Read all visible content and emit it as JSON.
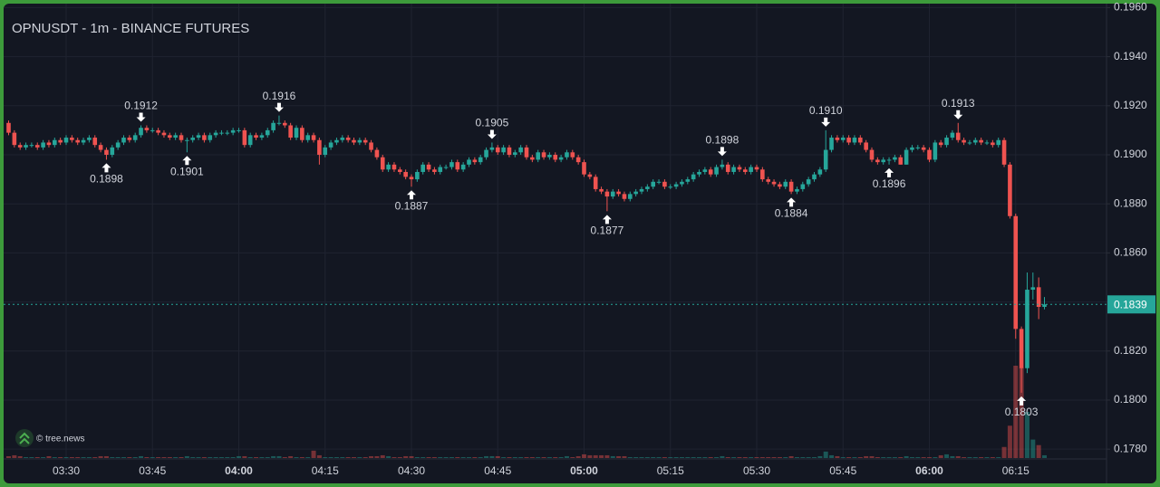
{
  "chart_data": {
    "type": "candlestick",
    "title": "OPNUSDT - 1m - BINANCE FUTURES",
    "watermark": "© tree.news",
    "up_color": "#26a69a",
    "down_color": "#ef5350",
    "grid": true,
    "ylim": [
      0.1776,
      0.1962
    ],
    "yticks": [
      {
        "value": 0.178,
        "label": "0.1780"
      },
      {
        "value": 0.18,
        "label": "0.1800"
      },
      {
        "value": 0.182,
        "label": "0.1820"
      },
      {
        "value": 0.184,
        "label": "0.1840"
      },
      {
        "value": 0.186,
        "label": "0.1860"
      },
      {
        "value": 0.188,
        "label": "0.1880"
      },
      {
        "value": 0.19,
        "label": "0.1900"
      },
      {
        "value": 0.192,
        "label": "0.1920"
      },
      {
        "value": 0.194,
        "label": "0.1940"
      },
      {
        "value": 0.196,
        "label": "0.1960"
      }
    ],
    "last_price": 0.1839,
    "x": [
      null,
      null,
      null,
      null,
      null,
      null,
      null,
      null,
      null,
      null,
      "03:30",
      null,
      null,
      null,
      null,
      null,
      null,
      null,
      null,
      null,
      null,
      null,
      null,
      null,
      null,
      "03:45",
      null,
      null,
      null,
      null,
      null,
      null,
      null,
      null,
      null,
      null,
      null,
      null,
      null,
      null,
      "04:00",
      null,
      null,
      null,
      null,
      null,
      null,
      null,
      null,
      null,
      null,
      null,
      null,
      null,
      null,
      "04:15",
      null,
      null,
      null,
      null,
      null,
      null,
      null,
      null,
      null,
      null,
      null,
      null,
      null,
      null,
      "04:30",
      null,
      null,
      null,
      null,
      null,
      null,
      null,
      null,
      null,
      null,
      null,
      null,
      null,
      null,
      "04:45",
      null,
      null,
      null,
      null,
      null,
      null,
      null,
      null,
      null,
      null,
      null,
      null,
      null,
      null,
      "05:00",
      null,
      null,
      null,
      null,
      null,
      null,
      null,
      null,
      null,
      null,
      null,
      null,
      null,
      null,
      "05:15",
      null,
      null,
      null,
      null,
      null,
      null,
      null,
      null,
      null,
      null,
      null,
      null,
      null,
      null,
      "05:30",
      null,
      null,
      null,
      null,
      null,
      null,
      null,
      null,
      null,
      null,
      null,
      null,
      null,
      null,
      "05:45",
      null,
      null,
      null,
      null,
      null,
      null,
      null,
      null,
      null,
      null,
      null,
      null,
      null,
      null,
      "06:00",
      null,
      null,
      null,
      null,
      null,
      null,
      null,
      null,
      null,
      null,
      null,
      null,
      null,
      null,
      "06:15",
      null,
      null,
      null,
      null,
      null
    ],
    "open": [
      0.1913,
      0.1909,
      0.1904,
      0.1903,
      0.1904,
      0.1904,
      0.1903,
      0.1905,
      0.1904,
      0.1906,
      0.1905,
      0.1907,
      0.1906,
      0.1905,
      0.1906,
      0.1907,
      0.1904,
      0.1902,
      0.19,
      0.1903,
      0.1905,
      0.1907,
      0.1906,
      0.1908,
      0.1911,
      0.191,
      0.191,
      0.1909,
      0.1908,
      0.1907,
      0.1908,
      0.1906,
      0.1906,
      0.1907,
      0.1908,
      0.1906,
      0.1908,
      0.1909,
      0.1909,
      0.1909,
      0.191,
      0.191,
      0.1904,
      0.1908,
      0.1907,
      0.1908,
      0.191,
      0.1913,
      0.1913,
      0.1912,
      0.1907,
      0.1911,
      0.1906,
      0.1908,
      0.1906,
      0.19,
      0.1903,
      0.1905,
      0.1906,
      0.1907,
      0.1906,
      0.1905,
      0.1906,
      0.1905,
      0.1902,
      0.1899,
      0.1894,
      0.1896,
      0.1894,
      0.1893,
      0.1891,
      0.189,
      0.1893,
      0.1896,
      0.1894,
      0.1893,
      0.1895,
      0.1895,
      0.1897,
      0.1894,
      0.1896,
      0.1898,
      0.1897,
      0.1899,
      0.1902,
      0.1903,
      0.1901,
      0.1903,
      0.19,
      0.1901,
      0.1903,
      0.1899,
      0.1898,
      0.1901,
      0.1899,
      0.19,
      0.1898,
      0.1899,
      0.1901,
      0.1899,
      0.1897,
      0.1892,
      0.1891,
      0.1886,
      0.1885,
      0.1883,
      0.1885,
      0.1884,
      0.1882,
      0.1884,
      0.1885,
      0.1886,
      0.1887,
      0.1889,
      0.1889,
      0.1887,
      0.1887,
      0.1888,
      0.1889,
      0.189,
      0.1892,
      0.1893,
      0.1894,
      0.1892,
      0.1895,
      0.1896,
      0.1893,
      0.1895,
      0.1894,
      0.1893,
      0.1895,
      0.1894,
      0.189,
      0.1889,
      0.1888,
      0.1887,
      0.1889,
      0.1885,
      0.1886,
      0.1888,
      0.189,
      0.1892,
      0.1894,
      0.1902,
      0.1907,
      0.1906,
      0.1907,
      0.1905,
      0.1907,
      0.1905,
      0.1902,
      0.1898,
      0.1897,
      0.1898,
      0.1898,
      0.1899,
      0.1896,
      0.1902,
      0.1903,
      0.1903,
      0.1902,
      0.1898,
      0.1905,
      0.1904,
      0.1907,
      0.1909,
      0.1906,
      0.1905,
      0.1905,
      0.1906,
      0.1905,
      0.1905,
      0.1904,
      0.1906,
      0.1896,
      0.1875,
      0.1829,
      0.1813,
      0.1845,
      0.1846,
      0.1838
    ],
    "high": [
      0.1914,
      0.191,
      0.1905,
      0.1905,
      0.1905,
      0.1905,
      0.1906,
      0.1906,
      0.1907,
      0.1907,
      0.1908,
      0.1908,
      0.1907,
      0.1907,
      0.1908,
      0.1908,
      0.1905,
      0.1903,
      0.1904,
      0.1906,
      0.1908,
      0.1908,
      0.1909,
      0.1912,
      0.1912,
      0.1911,
      0.1911,
      0.191,
      0.1909,
      0.1909,
      0.1909,
      0.1907,
      0.1908,
      0.1909,
      0.1909,
      0.1909,
      0.191,
      0.191,
      0.191,
      0.1911,
      0.1911,
      0.1911,
      0.1909,
      0.1909,
      0.1909,
      0.1911,
      0.1914,
      0.1916,
      0.1914,
      0.1913,
      0.1912,
      0.1912,
      0.1909,
      0.1909,
      0.1907,
      0.1904,
      0.1906,
      0.1907,
      0.1908,
      0.1908,
      0.1907,
      0.1907,
      0.1907,
      0.1906,
      0.1903,
      0.19,
      0.1897,
      0.1897,
      0.1895,
      0.1894,
      0.1892,
      0.1894,
      0.1897,
      0.1897,
      0.1895,
      0.1896,
      0.1896,
      0.1898,
      0.1898,
      0.1897,
      0.1899,
      0.1899,
      0.19,
      0.1903,
      0.1905,
      0.1904,
      0.1904,
      0.1904,
      0.1902,
      0.1904,
      0.1904,
      0.19,
      0.1902,
      0.1902,
      0.1901,
      0.1901,
      0.19,
      0.1902,
      0.1902,
      0.19,
      0.1898,
      0.1893,
      0.1892,
      0.1887,
      0.1886,
      0.1886,
      0.1886,
      0.1885,
      0.1885,
      0.1886,
      0.1887,
      0.1888,
      0.189,
      0.189,
      0.189,
      0.1888,
      0.1889,
      0.189,
      0.1891,
      0.1893,
      0.1894,
      0.1895,
      0.1895,
      0.1896,
      0.1898,
      0.1897,
      0.1896,
      0.1896,
      0.1895,
      0.1896,
      0.1896,
      0.1895,
      0.1891,
      0.189,
      0.1889,
      0.189,
      0.189,
      0.1887,
      0.1889,
      0.1891,
      0.1893,
      0.1895,
      0.191,
      0.1908,
      0.1908,
      0.1908,
      0.1908,
      0.1908,
      0.1908,
      0.1906,
      0.1903,
      0.1899,
      0.1899,
      0.1899,
      0.19,
      0.19,
      0.1903,
      0.1904,
      0.1904,
      0.1904,
      0.1903,
      0.1906,
      0.1906,
      0.1908,
      0.191,
      0.1913,
      0.1907,
      0.1906,
      0.1907,
      0.1907,
      0.1906,
      0.1906,
      0.1907,
      0.1907,
      0.1897,
      0.1876,
      0.183,
      0.1852,
      0.1852,
      0.185,
      0.1842
    ],
    "low": [
      0.1908,
      0.1903,
      0.1902,
      0.1902,
      0.1903,
      0.1902,
      0.1902,
      0.1903,
      0.1903,
      0.1904,
      0.1904,
      0.1905,
      0.1904,
      0.1904,
      0.1905,
      0.1903,
      0.1901,
      0.1898,
      0.1899,
      0.1902,
      0.1904,
      0.1905,
      0.1905,
      0.1907,
      0.1909,
      0.1909,
      0.1908,
      0.1907,
      0.1906,
      0.1906,
      0.1905,
      0.1901,
      0.1905,
      0.1906,
      0.1905,
      0.1905,
      0.1907,
      0.1908,
      0.1908,
      0.1908,
      0.1909,
      0.1903,
      0.1903,
      0.1906,
      0.1906,
      0.1907,
      0.1909,
      0.1912,
      0.1911,
      0.1906,
      0.1906,
      0.1905,
      0.1905,
      0.1905,
      0.1896,
      0.1899,
      0.1902,
      0.1904,
      0.1905,
      0.1905,
      0.1904,
      0.1904,
      0.1904,
      0.1901,
      0.1898,
      0.1893,
      0.1893,
      0.1893,
      0.1892,
      0.189,
      0.1887,
      0.1889,
      0.1892,
      0.1893,
      0.1892,
      0.1892,
      0.1894,
      0.1894,
      0.1893,
      0.1893,
      0.1895,
      0.1896,
      0.1896,
      0.1898,
      0.1901,
      0.19,
      0.19,
      0.1899,
      0.1899,
      0.19,
      0.1898,
      0.1897,
      0.1897,
      0.1898,
      0.1898,
      0.1897,
      0.1897,
      0.1898,
      0.1898,
      0.1896,
      0.1891,
      0.189,
      0.1885,
      0.1884,
      0.1877,
      0.1882,
      0.1883,
      0.1881,
      0.1881,
      0.1883,
      0.1884,
      0.1885,
      0.1886,
      0.1888,
      0.1886,
      0.1886,
      0.1886,
      0.1887,
      0.1888,
      0.1889,
      0.1891,
      0.1892,
      0.1891,
      0.1891,
      0.1894,
      0.1892,
      0.1892,
      0.1893,
      0.1892,
      0.1892,
      0.1893,
      0.1889,
      0.1888,
      0.1887,
      0.1886,
      0.1886,
      0.1884,
      0.1884,
      0.1885,
      0.1887,
      0.1889,
      0.1891,
      0.1893,
      0.1901,
      0.1905,
      0.1905,
      0.1904,
      0.1904,
      0.1904,
      0.1901,
      0.1897,
      0.1896,
      0.1896,
      0.1896,
      0.1897,
      0.1896,
      0.1896,
      0.1901,
      0.1902,
      0.1901,
      0.1897,
      0.1897,
      0.1903,
      0.1903,
      0.1906,
      0.1905,
      0.1904,
      0.1904,
      0.1904,
      0.1904,
      0.1904,
      0.1903,
      0.1903,
      0.1895,
      0.1874,
      0.1825,
      0.1803,
      0.1811,
      0.1841,
      0.1833,
      0.1837
    ],
    "close": [
      0.1909,
      0.1904,
      0.1903,
      0.1904,
      0.1904,
      0.1903,
      0.1905,
      0.1904,
      0.1906,
      0.1905,
      0.1907,
      0.1906,
      0.1905,
      0.1906,
      0.1907,
      0.1904,
      0.1902,
      0.19,
      0.1903,
      0.1905,
      0.1907,
      0.1906,
      0.1908,
      0.1911,
      0.191,
      0.191,
      0.1909,
      0.1908,
      0.1907,
      0.1908,
      0.1906,
      0.1906,
      0.1907,
      0.1908,
      0.1906,
      0.1908,
      0.1909,
      0.1909,
      0.1909,
      0.191,
      0.191,
      0.1904,
      0.1908,
      0.1907,
      0.1908,
      0.191,
      0.1913,
      0.1913,
      0.1912,
      0.1907,
      0.1911,
      0.1906,
      0.1908,
      0.1906,
      0.19,
      0.1903,
      0.1905,
      0.1906,
      0.1907,
      0.1906,
      0.1905,
      0.1906,
      0.1905,
      0.1902,
      0.1899,
      0.1894,
      0.1896,
      0.1894,
      0.1893,
      0.1891,
      0.189,
      0.1893,
      0.1896,
      0.1894,
      0.1893,
      0.1895,
      0.1895,
      0.1897,
      0.1894,
      0.1896,
      0.1898,
      0.1897,
      0.1899,
      0.1902,
      0.1903,
      0.1901,
      0.1903,
      0.19,
      0.1901,
      0.1903,
      0.1899,
      0.1898,
      0.1901,
      0.1899,
      0.19,
      0.1898,
      0.1899,
      0.1901,
      0.1899,
      0.1897,
      0.1892,
      0.1891,
      0.1886,
      0.1885,
      0.1883,
      0.1885,
      0.1884,
      0.1882,
      0.1884,
      0.1885,
      0.1886,
      0.1887,
      0.1889,
      0.1889,
      0.1887,
      0.1887,
      0.1888,
      0.1889,
      0.189,
      0.1892,
      0.1893,
      0.1894,
      0.1892,
      0.1895,
      0.1896,
      0.1893,
      0.1895,
      0.1894,
      0.1893,
      0.1895,
      0.1894,
      0.189,
      0.1889,
      0.1888,
      0.1887,
      0.1889,
      0.1885,
      0.1886,
      0.1888,
      0.189,
      0.1892,
      0.1894,
      0.1902,
      0.1907,
      0.1906,
      0.1907,
      0.1905,
      0.1907,
      0.1905,
      0.1902,
      0.1898,
      0.1897,
      0.1898,
      0.1898,
      0.1899,
      0.1896,
      0.1902,
      0.1903,
      0.1903,
      0.1902,
      0.1898,
      0.1905,
      0.1904,
      0.1907,
      0.1909,
      0.1906,
      0.1905,
      0.1905,
      0.1906,
      0.1905,
      0.1905,
      0.1904,
      0.1906,
      0.1896,
      0.1875,
      0.1829,
      0.1813,
      0.1845,
      0.1846,
      0.1838,
      0.1839
    ],
    "volume": [
      2,
      3,
      2,
      1,
      1,
      1,
      1,
      2,
      1,
      1,
      1,
      1,
      1,
      1,
      1,
      1,
      2,
      2,
      1,
      1,
      1,
      1,
      1,
      2,
      1,
      1,
      1,
      1,
      1,
      1,
      1,
      2,
      1,
      1,
      1,
      1,
      1,
      1,
      1,
      1,
      2,
      2,
      1,
      1,
      1,
      1,
      2,
      2,
      1,
      2,
      1,
      1,
      1,
      8,
      3,
      1,
      1,
      1,
      1,
      1,
      1,
      1,
      1,
      2,
      2,
      3,
      2,
      1,
      1,
      2,
      2,
      1,
      1,
      1,
      1,
      1,
      1,
      1,
      1,
      1,
      1,
      1,
      1,
      2,
      2,
      2,
      1,
      1,
      1,
      1,
      1,
      1,
      1,
      1,
      1,
      1,
      1,
      2,
      1,
      2,
      4,
      3,
      3,
      3,
      3,
      2,
      2,
      2,
      1,
      1,
      1,
      1,
      1,
      1,
      1,
      1,
      1,
      1,
      1,
      1,
      1,
      1,
      1,
      1,
      2,
      1,
      1,
      1,
      1,
      1,
      1,
      1,
      1,
      1,
      1,
      1,
      2,
      1,
      1,
      1,
      1,
      2,
      7,
      3,
      2,
      1,
      1,
      1,
      1,
      2,
      2,
      1,
      1,
      1,
      1,
      1,
      2,
      1,
      1,
      1,
      1,
      1,
      3,
      4,
      2,
      2,
      1,
      1,
      1,
      1,
      1,
      1,
      1,
      12,
      35,
      100,
      98,
      50,
      20,
      14,
      3
    ],
    "high_labels": [
      null,
      null,
      null,
      null,
      null,
      null,
      null,
      null,
      null,
      null,
      null,
      null,
      null,
      null,
      null,
      null,
      null,
      null,
      null,
      null,
      null,
      null,
      null,
      "0.1912",
      null,
      null,
      null,
      null,
      null,
      null,
      null,
      null,
      null,
      null,
      null,
      null,
      null,
      null,
      null,
      null,
      null,
      null,
      null,
      null,
      null,
      null,
      null,
      "0.1916",
      null,
      null,
      null,
      null,
      null,
      null,
      null,
      null,
      null,
      null,
      null,
      null,
      null,
      null,
      null,
      null,
      null,
      null,
      null,
      null,
      null,
      null,
      null,
      null,
      null,
      null,
      null,
      null,
      null,
      null,
      null,
      null,
      null,
      null,
      null,
      null,
      "0.1905",
      null,
      null,
      null,
      null,
      null,
      null,
      null,
      null,
      null,
      null,
      null,
      null,
      null,
      null,
      null,
      null,
      null,
      null,
      null,
      null,
      null,
      null,
      null,
      null,
      null,
      null,
      null,
      null,
      null,
      null,
      null,
      null,
      null,
      null,
      null,
      null,
      null,
      null,
      null,
      "0.1898",
      null,
      null,
      null,
      null,
      null,
      null,
      null,
      null,
      null,
      null,
      null,
      null,
      null,
      null,
      null,
      null,
      null,
      "0.1910",
      null,
      null,
      null,
      null,
      null,
      null,
      null,
      null,
      null,
      null,
      null,
      null,
      null,
      null,
      null,
      null,
      null,
      null,
      null,
      null,
      null,
      null,
      "0.1913",
      null,
      null,
      null,
      null,
      null,
      null,
      null,
      null,
      null,
      null,
      null,
      null,
      null,
      null,
      null
    ],
    "low_labels": [
      null,
      null,
      null,
      null,
      null,
      null,
      null,
      null,
      null,
      null,
      null,
      null,
      null,
      null,
      null,
      null,
      null,
      "0.1898",
      null,
      null,
      null,
      null,
      null,
      null,
      null,
      null,
      null,
      null,
      null,
      null,
      null,
      "0.1901",
      null,
      null,
      null,
      null,
      null,
      null,
      null,
      null,
      null,
      null,
      null,
      null,
      null,
      null,
      null,
      null,
      null,
      null,
      null,
      null,
      null,
      null,
      null,
      null,
      null,
      null,
      null,
      null,
      null,
      null,
      null,
      null,
      null,
      null,
      null,
      null,
      null,
      null,
      "0.1887",
      null,
      null,
      null,
      null,
      null,
      null,
      null,
      null,
      null,
      null,
      null,
      null,
      null,
      null,
      null,
      null,
      null,
      null,
      null,
      null,
      null,
      null,
      null,
      null,
      null,
      null,
      null,
      null,
      null,
      null,
      null,
      null,
      null,
      "0.1877",
      null,
      null,
      null,
      null,
      null,
      null,
      null,
      null,
      null,
      null,
      null,
      null,
      null,
      null,
      null,
      null,
      null,
      null,
      null,
      null,
      null,
      null,
      null,
      null,
      null,
      null,
      null,
      null,
      null,
      null,
      null,
      "0.1884",
      null,
      null,
      null,
      null,
      null,
      null,
      null,
      null,
      null,
      null,
      null,
      null,
      null,
      null,
      null,
      null,
      "0.1896",
      null,
      null,
      null,
      null,
      null,
      null,
      null,
      null,
      null,
      null,
      null,
      null,
      null,
      null,
      null,
      null,
      null,
      null,
      null,
      null,
      null,
      null,
      "0.1803",
      null,
      null,
      null,
      null
    ]
  }
}
